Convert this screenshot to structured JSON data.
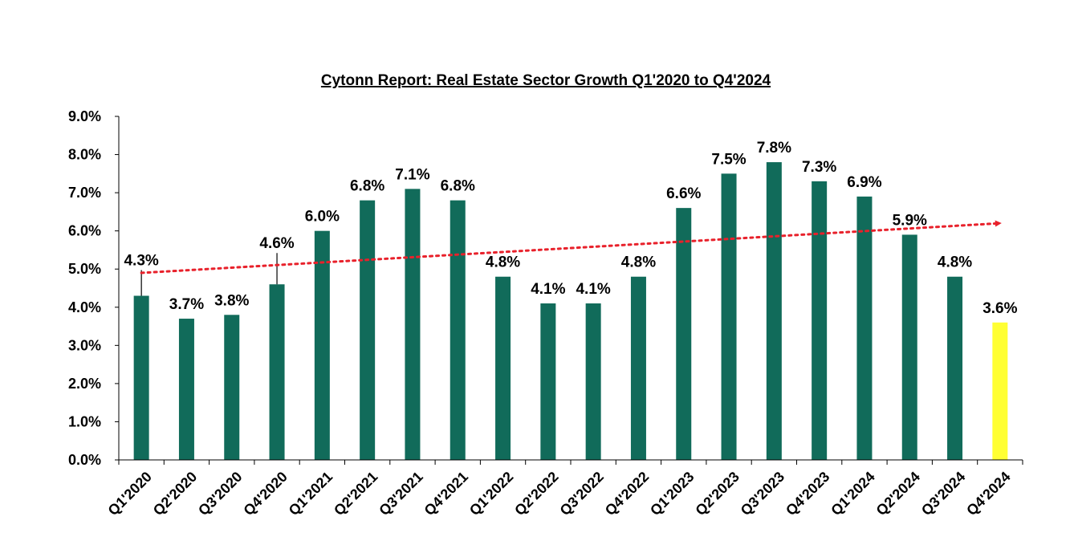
{
  "chart_data": {
    "type": "bar",
    "title": "Cytonn Report: Real Estate Sector Growth Q1'2020 to Q4'2024",
    "categories": [
      "Q1'2020",
      "Q2'2020",
      "Q3'2020",
      "Q4'2020",
      "Q1'2021",
      "Q2'2021",
      "Q3'2021",
      "Q4'2021",
      "Q1'2022",
      "Q2'2022",
      "Q3'2022",
      "Q4'2022",
      "Q1'2023",
      "Q2'2023",
      "Q3'2023",
      "Q4'2023",
      "Q1'2024",
      "Q2'2024",
      "Q3'2024",
      "Q4'2024"
    ],
    "values": [
      4.3,
      3.7,
      3.8,
      4.6,
      6.0,
      6.8,
      7.1,
      6.8,
      4.8,
      4.1,
      4.1,
      4.8,
      6.6,
      7.5,
      7.8,
      7.3,
      6.9,
      5.9,
      4.8,
      3.6
    ],
    "data_labels": [
      "4.3%",
      "3.7%",
      "3.8%",
      "4.6%",
      "6.0%",
      "6.8%",
      "7.1%",
      "6.8%",
      "4.8%",
      "4.1%",
      "4.1%",
      "4.8%",
      "6.6%",
      "7.5%",
      "7.8%",
      "7.3%",
      "6.9%",
      "5.9%",
      "4.8%",
      "3.6%"
    ],
    "y_ticks": [
      "0.0%",
      "1.0%",
      "2.0%",
      "3.0%",
      "4.0%",
      "5.0%",
      "6.0%",
      "7.0%",
      "8.0%",
      "9.0%"
    ],
    "ylim": [
      0,
      9
    ],
    "xlabel": "",
    "ylabel": "",
    "grid": false,
    "legend": "none",
    "trendline": {
      "type": "linear",
      "style": "dotted",
      "color": "#e8212b",
      "arrow": true,
      "start_value": 4.9,
      "end_value": 6.2
    },
    "colors": {
      "bar": "#116b5a",
      "highlight_bar": "#ffff33",
      "highlight_index": 19,
      "trend": "#e8212b"
    }
  }
}
